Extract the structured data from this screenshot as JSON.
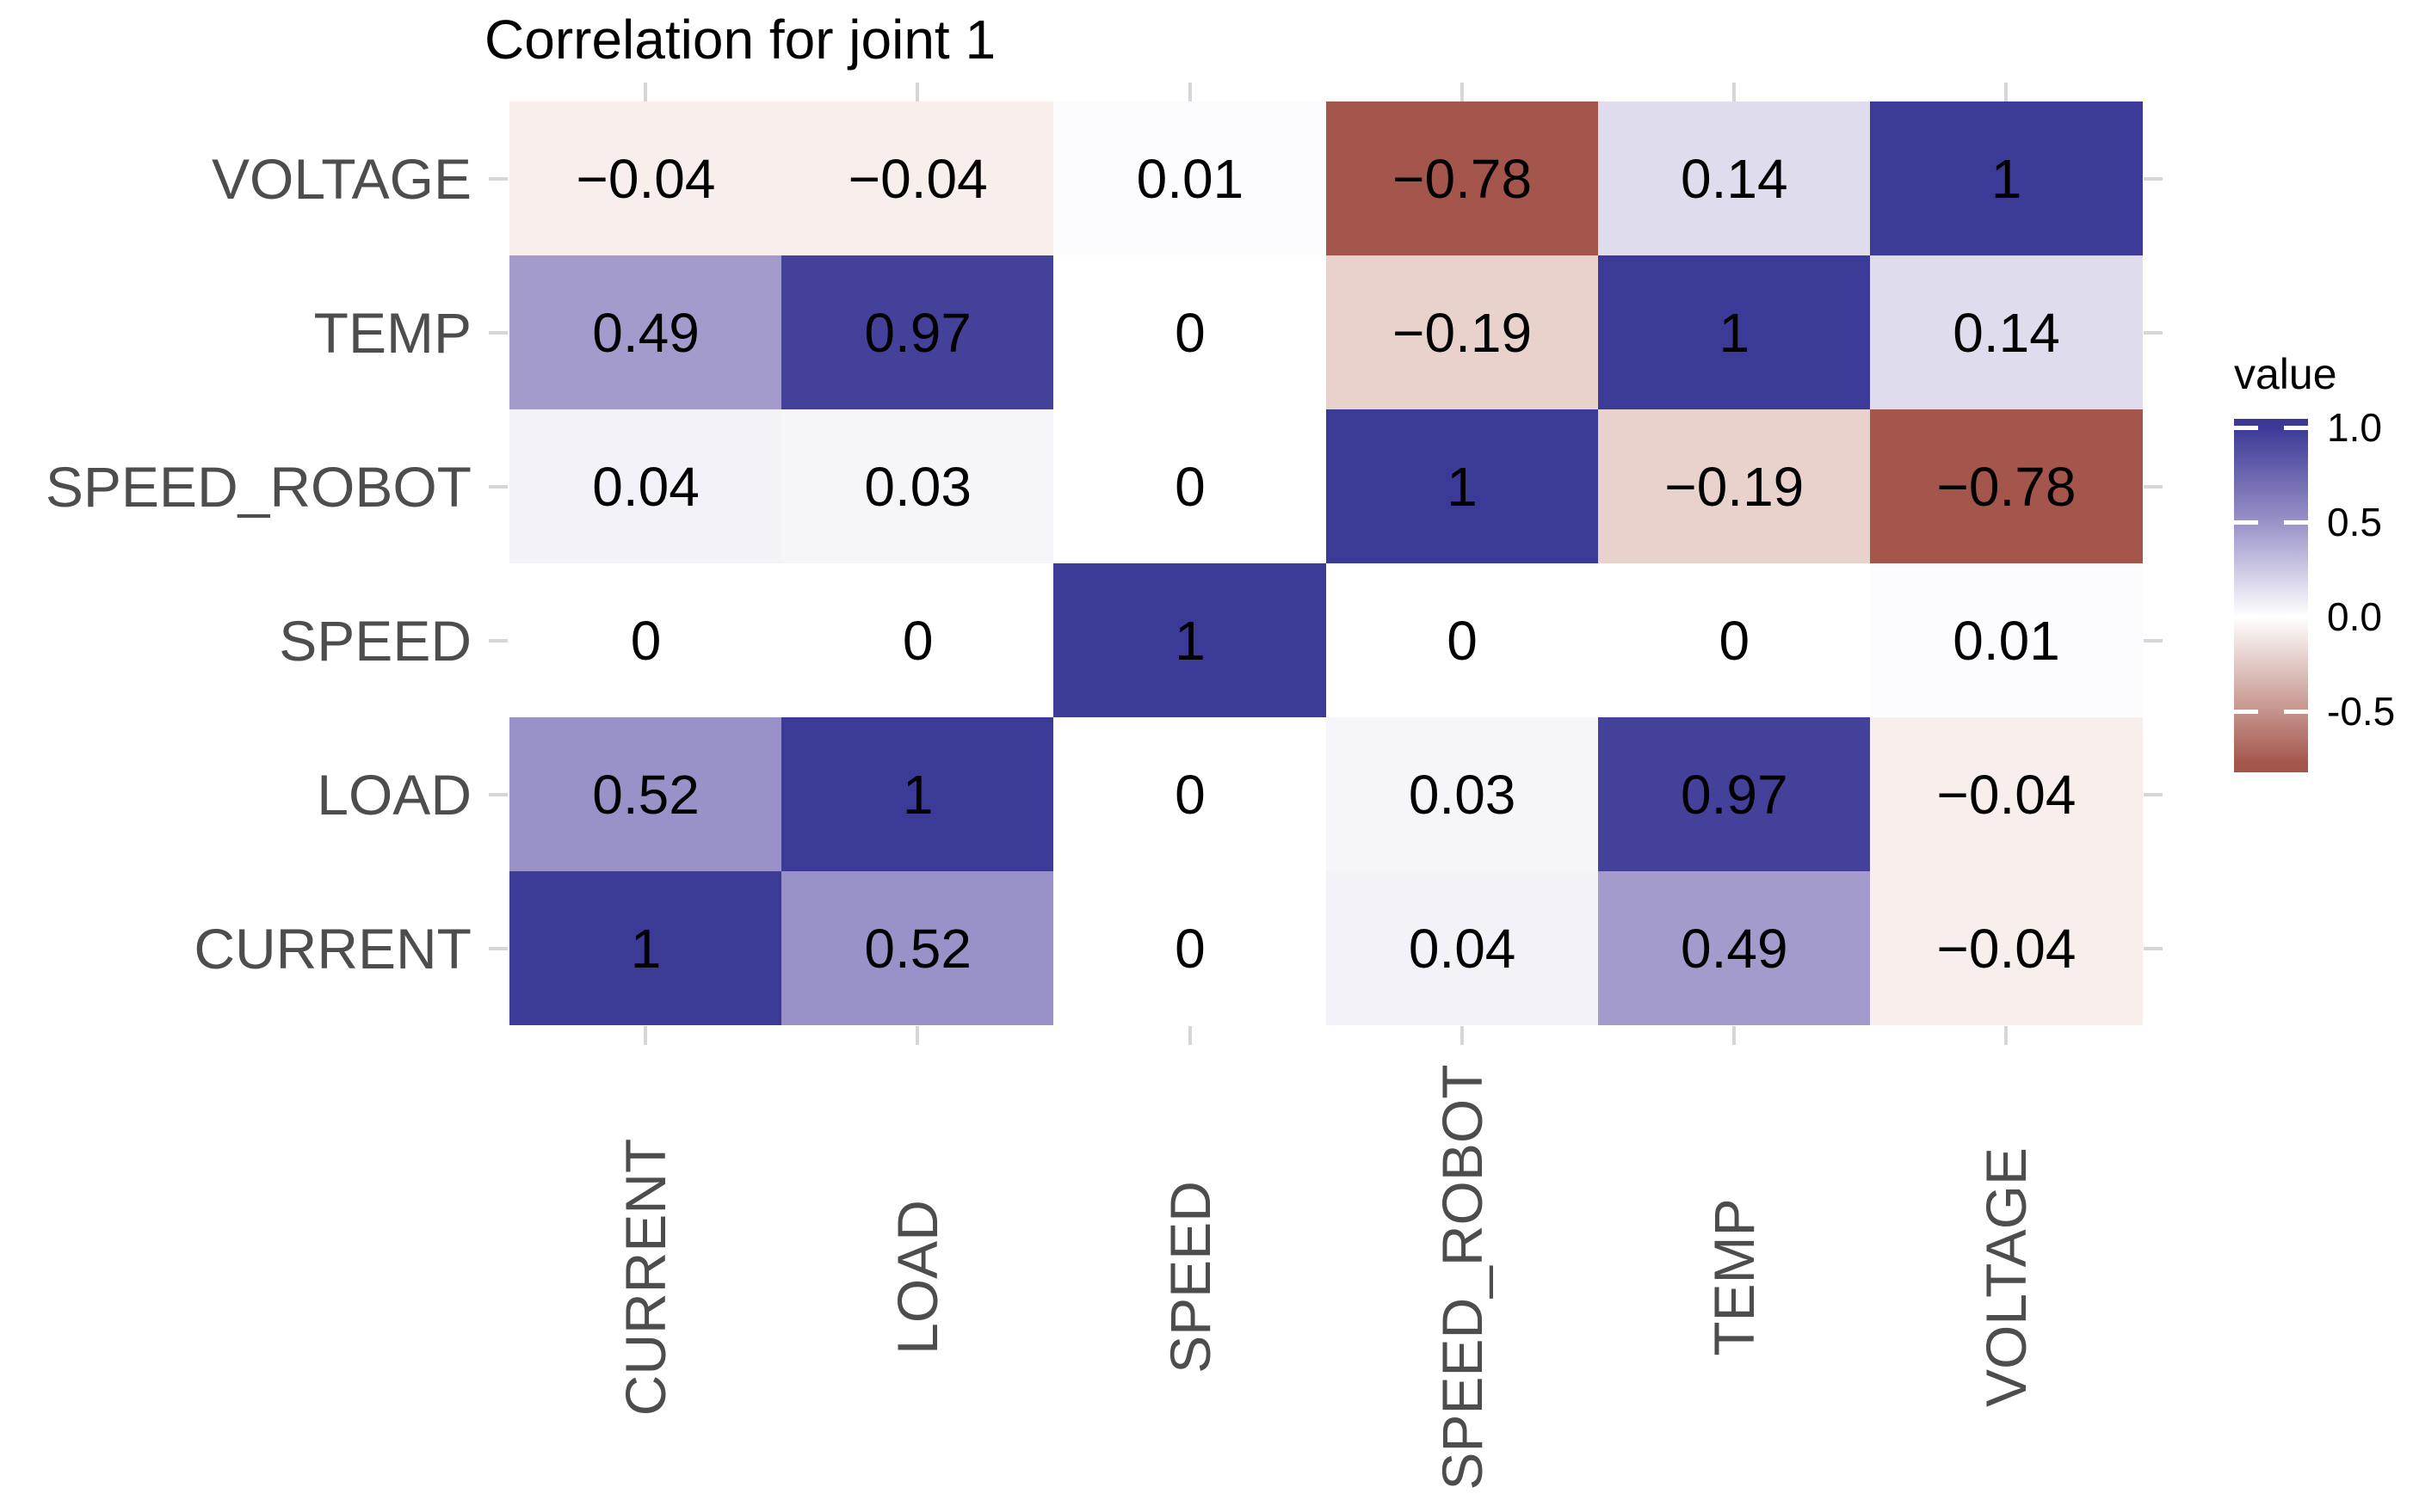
{
  "chart_data": {
    "type": "heatmap",
    "title": "Correlation for joint 1",
    "x_categories": [
      "CURRENT",
      "LOAD",
      "SPEED",
      "SPEED_ROBOT",
      "TEMP",
      "VOLTAGE"
    ],
    "y_categories": [
      "VOLTAGE",
      "TEMP",
      "SPEED_ROBOT",
      "SPEED",
      "LOAD",
      "CURRENT"
    ],
    "matrix": [
      [
        -0.04,
        -0.04,
        0.01,
        -0.78,
        0.14,
        1
      ],
      [
        0.49,
        0.97,
        0,
        -0.19,
        1,
        0.14
      ],
      [
        0.04,
        0.03,
        0,
        1,
        -0.19,
        -0.78
      ],
      [
        0,
        0,
        1,
        0,
        0,
        0.01
      ],
      [
        0.52,
        1,
        0,
        0.03,
        0.97,
        -0.04
      ],
      [
        1,
        0.52,
        0,
        0.04,
        0.49,
        -0.04
      ]
    ],
    "cell_labels": [
      [
        "−0.04",
        "−0.04",
        "0.01",
        "−0.78",
        "0.14",
        "1"
      ],
      [
        "0.49",
        "0.97",
        "0",
        "−0.19",
        "1",
        "0.14"
      ],
      [
        "0.04",
        "0.03",
        "0",
        "1",
        "−0.19",
        "−0.78"
      ],
      [
        "0",
        "0",
        "1",
        "0",
        "0",
        "0.01"
      ],
      [
        "0.52",
        "1",
        "0",
        "0.03",
        "0.97",
        "−0.04"
      ],
      [
        "1",
        "0.52",
        "0",
        "0.04",
        "0.49",
        "−0.04"
      ]
    ],
    "cell_colors": [
      [
        "#F8EFEC",
        "#F8EFEC",
        "#FCFBFD",
        "#A5564C",
        "#DFDCEE",
        "#3C3A97"
      ],
      [
        "#A29BCC",
        "#44419B",
        "#FFFFFF",
        "#EAD2CC",
        "#3C3A97",
        "#DFDCEE"
      ],
      [
        "#F4F2F9",
        "#F6F5FA",
        "#FFFFFF",
        "#3C3A97",
        "#EAD2CC",
        "#A5564C"
      ],
      [
        "#FFFFFF",
        "#FFFFFF",
        "#3C3A97",
        "#FFFFFF",
        "#FFFFFF",
        "#FCFBFD"
      ],
      [
        "#9992C8",
        "#3C3A97",
        "#FFFFFF",
        "#F6F5FA",
        "#44419B",
        "#F8EFEC"
      ],
      [
        "#3C3A97",
        "#9992C8",
        "#FFFFFF",
        "#F4F2F9",
        "#A29BCC",
        "#F8EFEC"
      ]
    ],
    "legend": {
      "title": "value",
      "tick_labels": [
        "1.0",
        "0.5",
        "0.0",
        "-0.5"
      ],
      "tick_values": [
        1.0,
        0.5,
        0.0,
        -0.5
      ],
      "range": [
        -0.83,
        1.04
      ],
      "high_color": "#3C3A97",
      "mid_color": "#FFFFFF",
      "low_color": "#A5564C"
    },
    "layout_hints": {
      "grid": false,
      "legend_position": "right",
      "x_tick_rotation": 90
    },
    "colors": {
      "title_text": "#000000",
      "cell_text": "#000000",
      "axis_text": "#4d4d4d",
      "tick_mark": "#d6d6d6",
      "background": "#ffffff"
    }
  }
}
